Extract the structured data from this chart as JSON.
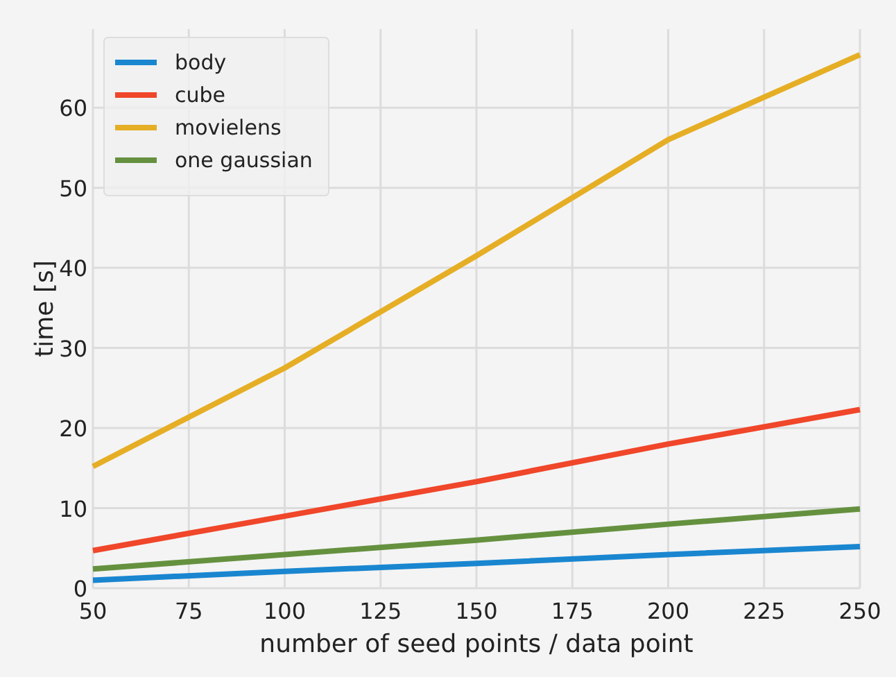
{
  "chart_data": {
    "type": "line",
    "xlabel": "number of seed points / data point",
    "ylabel": "time [s]",
    "x": [
      50,
      100,
      150,
      200,
      250
    ],
    "series": [
      {
        "name": "body",
        "color": "#1a86d0",
        "values": [
          1.0,
          2.1,
          3.1,
          4.2,
          5.2
        ]
      },
      {
        "name": "cube",
        "color": "#f0462a",
        "values": [
          4.7,
          9.0,
          13.3,
          18.0,
          22.3
        ]
      },
      {
        "name": "movielens",
        "color": "#e5ae25",
        "values": [
          15.2,
          27.5,
          41.5,
          56.0,
          66.6
        ]
      },
      {
        "name": "one gaussian",
        "color": "#65913f",
        "values": [
          2.4,
          4.2,
          6.0,
          8.0,
          9.9
        ]
      }
    ],
    "xlim": [
      50,
      250
    ],
    "xticks": [
      50,
      75,
      100,
      125,
      150,
      175,
      200,
      225,
      250
    ],
    "ylim": [
      0,
      69.8
    ],
    "yticks": [
      0,
      10,
      20,
      30,
      40,
      50,
      60
    ],
    "grid": true,
    "legend": "top left",
    "line_style": "solid",
    "marker": "none"
  }
}
